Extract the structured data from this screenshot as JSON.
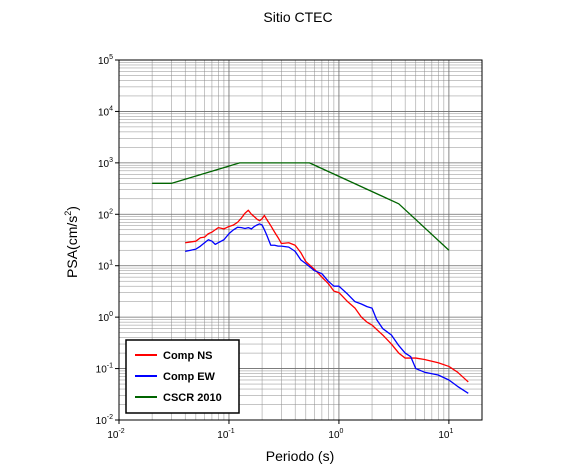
{
  "chart_data": {
    "type": "line",
    "title": "Sitio CTEC",
    "xlabel": "Periodo (s)",
    "ylabel_base": "PSA(cm/s",
    "ylabel_exp": "2",
    "ylabel_tail": ")",
    "xscale": "log",
    "yscale": "log",
    "xlim": [
      0.01,
      20
    ],
    "ylim": [
      0.01,
      100000
    ],
    "grid": true,
    "legend_position": "bottom-left",
    "x_ticks": [
      {
        "base": "10",
        "exp": "-2",
        "value": 0.01
      },
      {
        "base": "10",
        "exp": "-1",
        "value": 0.1
      },
      {
        "base": "10",
        "exp": "0",
        "value": 1
      },
      {
        "base": "10",
        "exp": "1",
        "value": 10
      }
    ],
    "y_ticks": [
      {
        "base": "10",
        "exp": "-2",
        "value": 0.01
      },
      {
        "base": "10",
        "exp": "-1",
        "value": 0.1
      },
      {
        "base": "10",
        "exp": "0",
        "value": 1
      },
      {
        "base": "10",
        "exp": "1",
        "value": 10
      },
      {
        "base": "10",
        "exp": "2",
        "value": 100
      },
      {
        "base": "10",
        "exp": "3",
        "value": 1000
      },
      {
        "base": "10",
        "exp": "4",
        "value": 10000
      },
      {
        "base": "10",
        "exp": "5",
        "value": 100000
      }
    ],
    "series": [
      {
        "name": "Comp NS",
        "color": "#ff0000",
        "x": [
          0.04,
          0.05,
          0.055,
          0.06,
          0.065,
          0.07,
          0.075,
          0.08,
          0.09,
          0.1,
          0.11,
          0.12,
          0.13,
          0.14,
          0.15,
          0.16,
          0.17,
          0.18,
          0.19,
          0.2,
          0.21,
          0.22,
          0.24,
          0.26,
          0.28,
          0.3,
          0.35,
          0.4,
          0.45,
          0.5,
          0.6,
          0.7,
          0.8,
          0.9,
          1.0,
          1.2,
          1.4,
          1.6,
          1.8,
          2.0,
          2.5,
          3.0,
          3.5,
          4.0,
          5.0,
          6.0,
          8.0,
          10.0,
          12.0,
          15.0
        ],
        "y": [
          28,
          30,
          35,
          36,
          42,
          45,
          50,
          55,
          52,
          58,
          62,
          70,
          85,
          105,
          120,
          100,
          90,
          80,
          75,
          82,
          95,
          80,
          60,
          45,
          35,
          27,
          28,
          25,
          18,
          12,
          8.5,
          6,
          4.5,
          3.2,
          3,
          2,
          1.5,
          1.0,
          0.8,
          0.7,
          0.45,
          0.3,
          0.2,
          0.16,
          0.16,
          0.15,
          0.13,
          0.11,
          0.085,
          0.055
        ]
      },
      {
        "name": "Comp EW",
        "color": "#0000ff",
        "x": [
          0.04,
          0.045,
          0.05,
          0.055,
          0.06,
          0.065,
          0.07,
          0.075,
          0.08,
          0.09,
          0.1,
          0.11,
          0.12,
          0.13,
          0.14,
          0.15,
          0.16,
          0.17,
          0.18,
          0.19,
          0.2,
          0.21,
          0.22,
          0.24,
          0.26,
          0.28,
          0.3,
          0.35,
          0.4,
          0.45,
          0.5,
          0.6,
          0.7,
          0.8,
          0.9,
          1.0,
          1.2,
          1.4,
          1.6,
          1.8,
          2.0,
          2.2,
          2.5,
          3.0,
          3.5,
          4.0,
          4.5,
          5.0,
          6.0,
          8.0,
          10.0,
          12.0,
          15.0
        ],
        "y": [
          19,
          20,
          21,
          24,
          28,
          32,
          30,
          26,
          28,
          32,
          42,
          50,
          56,
          55,
          53,
          55,
          52,
          58,
          62,
          65,
          62,
          50,
          40,
          25,
          25,
          24,
          24,
          23,
          19,
          13,
          11,
          8,
          7,
          5,
          4,
          4,
          2.8,
          2,
          1.8,
          1.6,
          1.5,
          0.9,
          0.6,
          0.45,
          0.28,
          0.2,
          0.17,
          0.1,
          0.085,
          0.075,
          0.06,
          0.045,
          0.033
        ]
      },
      {
        "name": "CSCR 2010",
        "color": "#006400",
        "x": [
          0.02,
          0.03,
          0.125,
          0.54,
          3.5,
          10.0
        ],
        "y": [
          400,
          400,
          1000,
          1000,
          160,
          20
        ]
      }
    ]
  }
}
